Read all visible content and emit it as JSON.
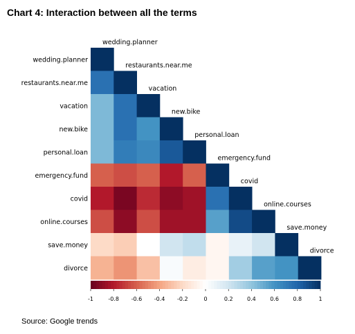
{
  "page": {
    "title": "Chart 4: Interaction between all the terms",
    "source": "Source: Google trends"
  },
  "chart_data": {
    "type": "heatmap",
    "subtype": "correlation-matrix-lower-triangle",
    "title": "Chart 4: Interaction between all the terms",
    "variables": [
      "wedding.planner",
      "restaurants.near.me",
      "vacation",
      "new.bike",
      "personal.loan",
      "emergency.fund",
      "covid",
      "online.courses",
      "save.money",
      "divorce"
    ],
    "matrix": [
      [
        1.0
      ],
      [
        0.75,
        1.0
      ],
      [
        0.45,
        0.75,
        1.0
      ],
      [
        0.45,
        0.75,
        0.6,
        1.0
      ],
      [
        0.45,
        0.7,
        0.65,
        0.85,
        1.0
      ],
      [
        -0.6,
        -0.65,
        -0.6,
        -0.8,
        -0.6,
        1.0
      ],
      [
        -0.8,
        -0.95,
        -0.75,
        -0.9,
        -0.85,
        0.75,
        1.0
      ],
      [
        -0.65,
        -0.9,
        -0.65,
        -0.85,
        -0.85,
        0.55,
        0.9,
        1.0
      ],
      [
        -0.2,
        -0.25,
        0.0,
        0.2,
        0.25,
        -0.05,
        0.1,
        0.2,
        1.0
      ],
      [
        -0.35,
        -0.45,
        -0.3,
        0.03,
        -0.1,
        -0.05,
        0.35,
        0.55,
        0.6,
        1.0
      ]
    ],
    "colorbar": {
      "range": [
        -1,
        1
      ],
      "ticks": [
        "-1",
        "-0.8",
        "-0.6",
        "-0.4",
        "-0.2",
        "0",
        "0.2",
        "0.4",
        "0.6",
        "0.8",
        "1"
      ],
      "tick_values": [
        -1,
        -0.8,
        -0.6,
        -0.4,
        -0.2,
        0,
        0.2,
        0.4,
        0.6,
        0.8,
        1
      ]
    },
    "colors": {
      "negative": "#67001f",
      "neutral": "#ffffff",
      "positive": "#053061",
      "scale": [
        "#67001f",
        "#b2182b",
        "#d6604d",
        "#f4a582",
        "#fddbc7",
        "#ffffff",
        "#d1e5f0",
        "#92c5de",
        "#4393c3",
        "#2166ac",
        "#053061"
      ]
    }
  }
}
